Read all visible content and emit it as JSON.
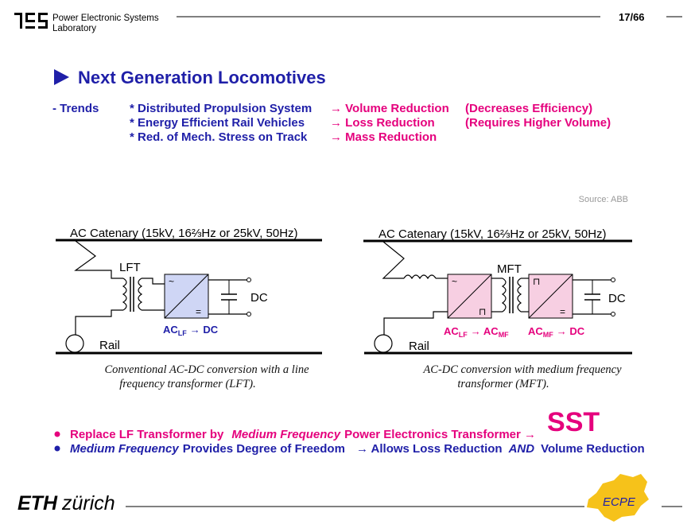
{
  "header": {
    "lab_line1": "Power Electronic Systems",
    "lab_line2": "Laboratory",
    "page": "17/66"
  },
  "title": "Next Generation Locomotives",
  "trends": {
    "label": "- Trends",
    "rows": [
      [
        "* Distributed Propulsion System",
        "→ Volume Reduction",
        "(Decreases Efficiency)"
      ],
      [
        "* Energy Efficient Rail Vehicles",
        "→ Loss Reduction",
        "(Requires Higher Volume)"
      ],
      [
        "* Red. of Mech. Stress on Track",
        "→ Mass Reduction"
      ]
    ]
  },
  "source": "Source: ABB",
  "diagram_left": {
    "catenary": "AC Catenary (15kV, 16⅔Hz or 25kV, 50Hz)",
    "transformer": "LFT",
    "output": "DC",
    "rail": "Rail",
    "converter": {
      "base": "AC",
      "sub": "LF",
      "rest": "→ DC"
    },
    "caption": [
      "Conventional AC-DC conversion with a line",
      "frequency transformer (LFT)."
    ]
  },
  "diagram_right": {
    "catenary": "AC Catenary (15kV, 16⅔Hz or 25kV, 50Hz)",
    "transformer": "MFT",
    "output": "DC",
    "rail": "Rail",
    "converter1": {
      "base": "AC",
      "sub": "LF",
      "rest": "→ AC",
      "sub2": "MF"
    },
    "converter2": {
      "base": "AC",
      "sub": "MF",
      "rest": "→ DC"
    },
    "caption": [
      "AC-DC conversion with medium frequency",
      "transformer (MFT)."
    ]
  },
  "bullets": [
    [
      "Replace LF Transformer  by",
      "Medium Frequency",
      "Power Electronics Transformer →",
      "SST"
    ],
    [
      "Medium Frequency",
      "Provides Degree of Freedom",
      "→ Allows Loss Reduction",
      "AND",
      "Volume Reduction"
    ]
  ],
  "footer": {
    "eth": "ETH",
    "zurich": "zürich",
    "ecpe": "ECPE"
  }
}
